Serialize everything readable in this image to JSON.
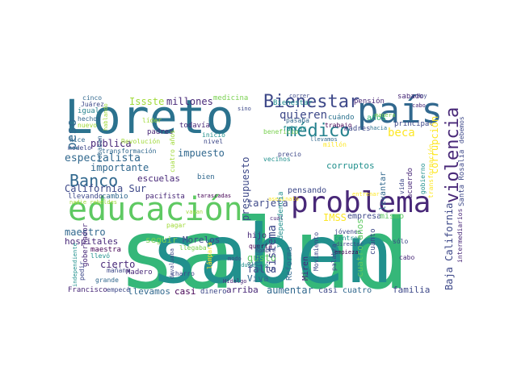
{
  "words": [
    "salud",
    "saben",
    "Loreto",
    "educación",
    "problema",
    "país",
    "médico",
    "Bienestar",
    "Banco",
    "violencia",
    "Issste",
    "millones",
    "medicina",
    "pública",
    "especialista",
    "importante",
    "impuesto",
    "California Sur",
    "escuelas",
    "quieren",
    "Bienestar",
    "beca",
    "corruptos",
    "pensando",
    "años",
    "sábado",
    "principal",
    "pensión",
    "cuándo",
    "madres",
    "cinco",
    "Juárez",
    "igual",
    "hechos",
    "nuevo",
    "padres",
    "todavía",
    "hice",
    "modelo",
    "transformación",
    "Revolución",
    "cambio",
    "llevando",
    "pacifista",
    "tarascadas",
    "bien",
    "nivel",
    "inició",
    "líder",
    "sino",
    "beneficio",
    "faltar",
    "pasaba",
    "trabajo",
    "correr",
    "hacia",
    "millón",
    "llevamos",
    "precio",
    "vecinos",
    "manera",
    "Hoy",
    "cabo",
    "IMSS",
    "empresa",
    "mismo",
    "maestro",
    "hospitales",
    "seguir",
    "Morelos",
    "cierto",
    "maestra",
    "llevó",
    "mañana",
    "Madero",
    "grande",
    "empecé",
    "Francisco",
    "llevamos",
    "casi",
    "dinero",
    "arriba",
    "aumentar",
    "casi",
    "cuatro",
    "familia",
    "tarjeta",
    "falta",
    "gusto",
    "Viva",
    "hijo",
    "quería",
    "hombre",
    "ojo",
    "modo",
    "Hidalgo",
    "educativo",
    "llegaba",
    "pagar",
    "charro",
    "vayan",
    "cuál",
    "asesinato",
    "entrenar",
    "nadie rebeldes",
    "jóvenes",
    "centros",
    "director",
    "empieza",
    "sólo",
    "cabo",
    "cuatro años",
    "peso",
    "gobernador",
    "independiente",
    "pedir",
    "hablando",
    "robaban",
    "devaluaba",
    "lámpara",
    "presupuesto",
    "sistema",
    "Reforma",
    "Miren",
    "Independencia",
    "Movimiento",
    "palabra",
    "profundo",
    "cuatro años",
    "cuánto",
    "levantar",
    "vida",
    "acuerdo",
    "gobierno",
    "transformación",
    "corrupción",
    "Baja California",
    "intermediarios",
    "Santa Rosalía",
    "debemos"
  ],
  "colors": {
    "background": "#ffffff",
    "palette": [
      "#440154",
      "#482878",
      "#3e4989",
      "#31688e",
      "#26828e",
      "#21908d",
      "#35b779",
      "#5ec962",
      "#7ad151",
      "#a0da39",
      "#fde725"
    ]
  }
}
